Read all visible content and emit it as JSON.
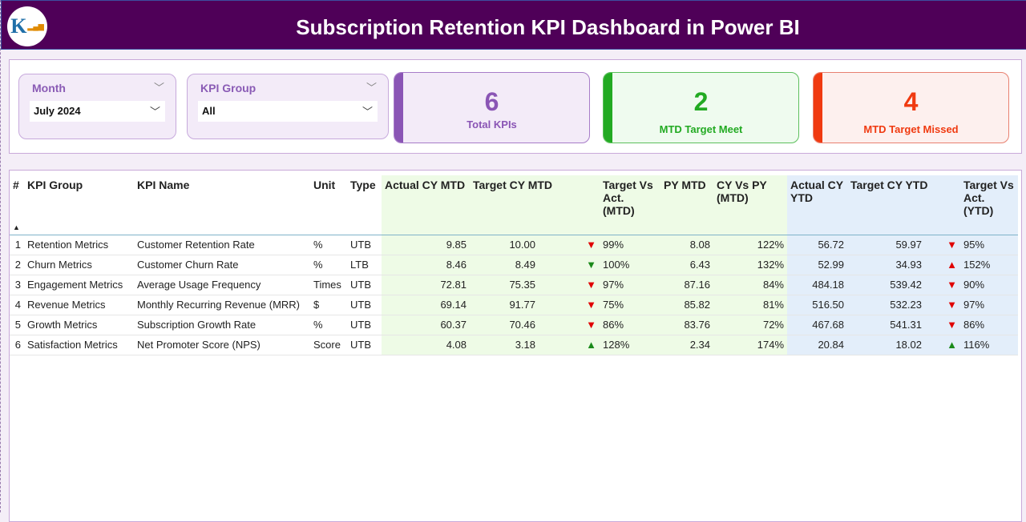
{
  "header": {
    "title": "Subscription Retention KPI Dashboard in Power BI",
    "logo_text": "K"
  },
  "filters": {
    "month": {
      "label": "Month",
      "value": "July 2024"
    },
    "kpi_group": {
      "label": "KPI Group",
      "value": "All"
    }
  },
  "cards": [
    {
      "value": "6",
      "label": "Total KPIs",
      "color": "#8a55b5"
    },
    {
      "value": "2",
      "label": "MTD Target Meet",
      "color": "#22aa22"
    },
    {
      "value": "4",
      "label": "MTD Target Missed",
      "color": "#f03a10"
    }
  ],
  "table": {
    "headers": [
      "#",
      "KPI Group",
      "KPI Name",
      "Unit",
      "Type",
      "Actual CY MTD",
      "Target CY MTD",
      "Target Vs Act. (MTD)",
      "PY MTD",
      "CY Vs PY (MTD)",
      "Actual CY YTD",
      "Target CY YTD",
      "Target Vs Act. (YTD)"
    ],
    "rows": [
      [
        "1",
        "Retention Metrics",
        "Customer Retention Rate",
        "%",
        "UTB",
        "9.85",
        "10.00",
        "down-red",
        "99%",
        "8.08",
        "122%",
        "56.72",
        "59.97",
        "down-red",
        "95%"
      ],
      [
        "2",
        "Churn Metrics",
        "Customer Churn Rate",
        "%",
        "LTB",
        "8.46",
        "8.49",
        "down-green",
        "100%",
        "6.43",
        "132%",
        "52.99",
        "34.93",
        "up-red",
        "152%"
      ],
      [
        "3",
        "Engagement Metrics",
        "Average Usage Frequency",
        "Times",
        "UTB",
        "72.81",
        "75.35",
        "down-red",
        "97%",
        "87.16",
        "84%",
        "484.18",
        "539.42",
        "down-red",
        "90%"
      ],
      [
        "4",
        "Revenue Metrics",
        "Monthly Recurring Revenue (MRR)",
        "$",
        "UTB",
        "69.14",
        "91.77",
        "down-red",
        "75%",
        "85.82",
        "81%",
        "516.50",
        "532.23",
        "down-red",
        "97%"
      ],
      [
        "5",
        "Growth Metrics",
        "Subscription Growth Rate",
        "%",
        "UTB",
        "60.37",
        "70.46",
        "down-red",
        "86%",
        "83.76",
        "72%",
        "467.68",
        "541.31",
        "down-red",
        "86%"
      ],
      [
        "6",
        "Satisfaction Metrics",
        "Net Promoter Score (NPS)",
        "Score",
        "UTB",
        "4.08",
        "3.18",
        "up-green",
        "128%",
        "2.34",
        "174%",
        "20.84",
        "18.02",
        "up-green",
        "116%"
      ]
    ]
  }
}
